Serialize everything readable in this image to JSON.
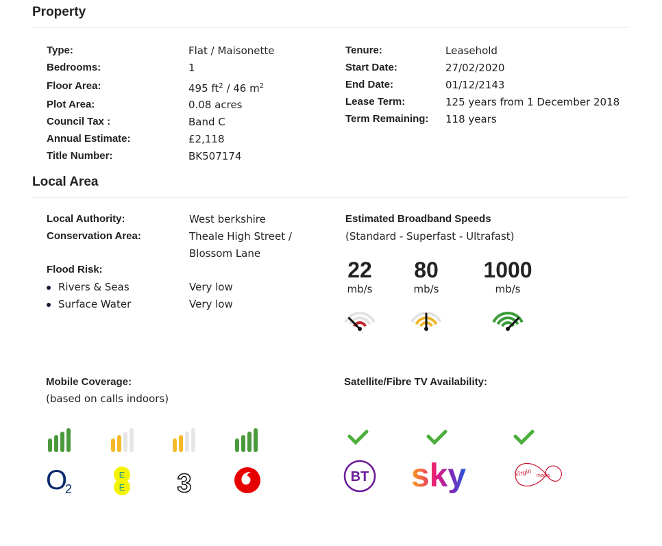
{
  "property": {
    "title": "Property",
    "left": [
      {
        "label": "Type:",
        "value": "Flat / Maisonette"
      },
      {
        "label": "Bedrooms:",
        "value": "1"
      },
      {
        "label": "Floor Area:",
        "value": {
          "text": "495 ft",
          "sup": "2",
          "text2": " / 46 m",
          "sup2": "2"
        }
      },
      {
        "label": "Plot Area:",
        "value": "0.08 acres"
      },
      {
        "label": "Council Tax :",
        "value": "Band C"
      },
      {
        "label": "Annual Estimate:",
        "value": "£2,118"
      },
      {
        "label": "Title Number:",
        "value": "BK507174"
      }
    ],
    "right": [
      {
        "label": "Tenure:",
        "value": "Leasehold"
      },
      {
        "label": "Start Date:",
        "value": "27/02/2020"
      },
      {
        "label": "End Date:",
        "value": "01/12/2143"
      },
      {
        "label": "Lease Term:",
        "value": "125 years from 1 December 2018"
      },
      {
        "label": "Term Remaining:",
        "value": "118 years"
      }
    ]
  },
  "local_area": {
    "title": "Local Area",
    "rows": [
      {
        "label": "Local Authority:",
        "value": [
          "West berkshire"
        ]
      },
      {
        "label": "Conservation Area:",
        "value": [
          "Theale High Street /",
          "Blossom Lane"
        ]
      }
    ],
    "flood": {
      "title": "Flood Risk:",
      "items": [
        {
          "label": "Rivers & Seas",
          "value": "Very low"
        },
        {
          "label": "Surface Water",
          "value": "Very low"
        }
      ]
    },
    "broadband": {
      "title": "Estimated Broadband Speeds",
      "subtitle": "(Standard - Superfast - Ultrafast)",
      "speeds": [
        {
          "value": "22",
          "unit": "mb/s",
          "level": 1,
          "color": "#c0272d"
        },
        {
          "value": "80",
          "unit": "mb/s",
          "level": 2,
          "color": "#f0b429"
        },
        {
          "value": "1000",
          "unit": "mb/s",
          "level": 3,
          "color": "#3a9c3a"
        }
      ]
    }
  },
  "mobile": {
    "title": "Mobile Coverage:",
    "subtitle": "(based on calls indoors)",
    "providers": [
      {
        "signal": 4,
        "color": "#4a9a3c"
      },
      {
        "signal": 2,
        "color": "#f7b92a"
      },
      {
        "signal": 2,
        "color": "#f7b92a"
      },
      {
        "signal": 4,
        "color": "#4a9a3c"
      }
    ],
    "logos": {
      "o2": [
        "O",
        "2"
      ],
      "ee": [
        "E",
        "E"
      ],
      "three": "3"
    }
  },
  "tv": {
    "title": "Satellite/Fibre TV Availability:",
    "logos": {
      "bt": "BT",
      "sky": "sky",
      "virgin": [
        "Virgin",
        "media"
      ]
    }
  }
}
